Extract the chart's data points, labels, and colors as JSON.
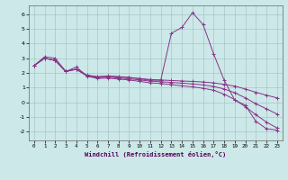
{
  "background_color": "#cce8e8",
  "grid_color": "#b0c8c8",
  "line_color": "#883388",
  "xlabel": "Windchill (Refroidissement éolien,°C)",
  "ylim": [
    -2.6,
    6.6
  ],
  "xlim": [
    -0.5,
    23.5
  ],
  "yticks": [
    -2,
    -1,
    0,
    1,
    2,
    3,
    4,
    5,
    6
  ],
  "xticks": [
    0,
    1,
    2,
    3,
    4,
    5,
    6,
    7,
    8,
    9,
    10,
    11,
    12,
    13,
    14,
    15,
    16,
    17,
    18,
    19,
    20,
    21,
    22,
    23
  ],
  "series": [
    {
      "x": [
        0,
        1,
        2,
        3,
        4,
        5,
        6,
        7,
        8,
        9,
        10,
        11,
        12,
        13,
        14,
        15,
        16,
        17,
        18,
        19,
        20,
        21,
        22,
        23
      ],
      "y": [
        2.5,
        3.1,
        3.0,
        2.1,
        2.4,
        1.8,
        1.7,
        1.8,
        1.75,
        1.7,
        1.6,
        1.5,
        1.5,
        4.7,
        5.1,
        6.1,
        5.3,
        3.3,
        1.5,
        0.15,
        -0.2,
        -1.3,
        -1.8,
        -1.9
      ]
    },
    {
      "x": [
        0,
        1,
        2,
        3,
        4,
        5,
        6,
        7,
        8,
        9,
        10,
        11,
        12,
        13,
        14,
        15,
        16,
        17,
        18,
        19,
        20,
        21,
        22,
        23
      ],
      "y": [
        2.5,
        3.0,
        2.85,
        2.1,
        2.25,
        1.85,
        1.75,
        1.78,
        1.72,
        1.68,
        1.62,
        1.55,
        1.52,
        1.48,
        1.45,
        1.42,
        1.38,
        1.32,
        1.22,
        1.1,
        0.9,
        0.68,
        0.48,
        0.3
      ]
    },
    {
      "x": [
        0,
        1,
        2,
        3,
        4,
        5,
        6,
        7,
        8,
        9,
        10,
        11,
        12,
        13,
        14,
        15,
        16,
        17,
        18,
        19,
        20,
        21,
        22,
        23
      ],
      "y": [
        2.5,
        3.0,
        2.85,
        2.1,
        2.25,
        1.82,
        1.68,
        1.72,
        1.65,
        1.6,
        1.52,
        1.44,
        1.4,
        1.35,
        1.3,
        1.25,
        1.18,
        1.08,
        0.9,
        0.65,
        0.3,
        -0.1,
        -0.45,
        -0.8
      ]
    },
    {
      "x": [
        0,
        1,
        2,
        3,
        4,
        5,
        6,
        7,
        8,
        9,
        10,
        11,
        12,
        13,
        14,
        15,
        16,
        17,
        18,
        19,
        20,
        21,
        22,
        23
      ],
      "y": [
        2.5,
        3.0,
        2.85,
        2.1,
        2.25,
        1.78,
        1.62,
        1.65,
        1.58,
        1.52,
        1.42,
        1.32,
        1.28,
        1.2,
        1.12,
        1.05,
        0.95,
        0.82,
        0.55,
        0.18,
        -0.3,
        -0.85,
        -1.35,
        -1.75
      ]
    }
  ]
}
